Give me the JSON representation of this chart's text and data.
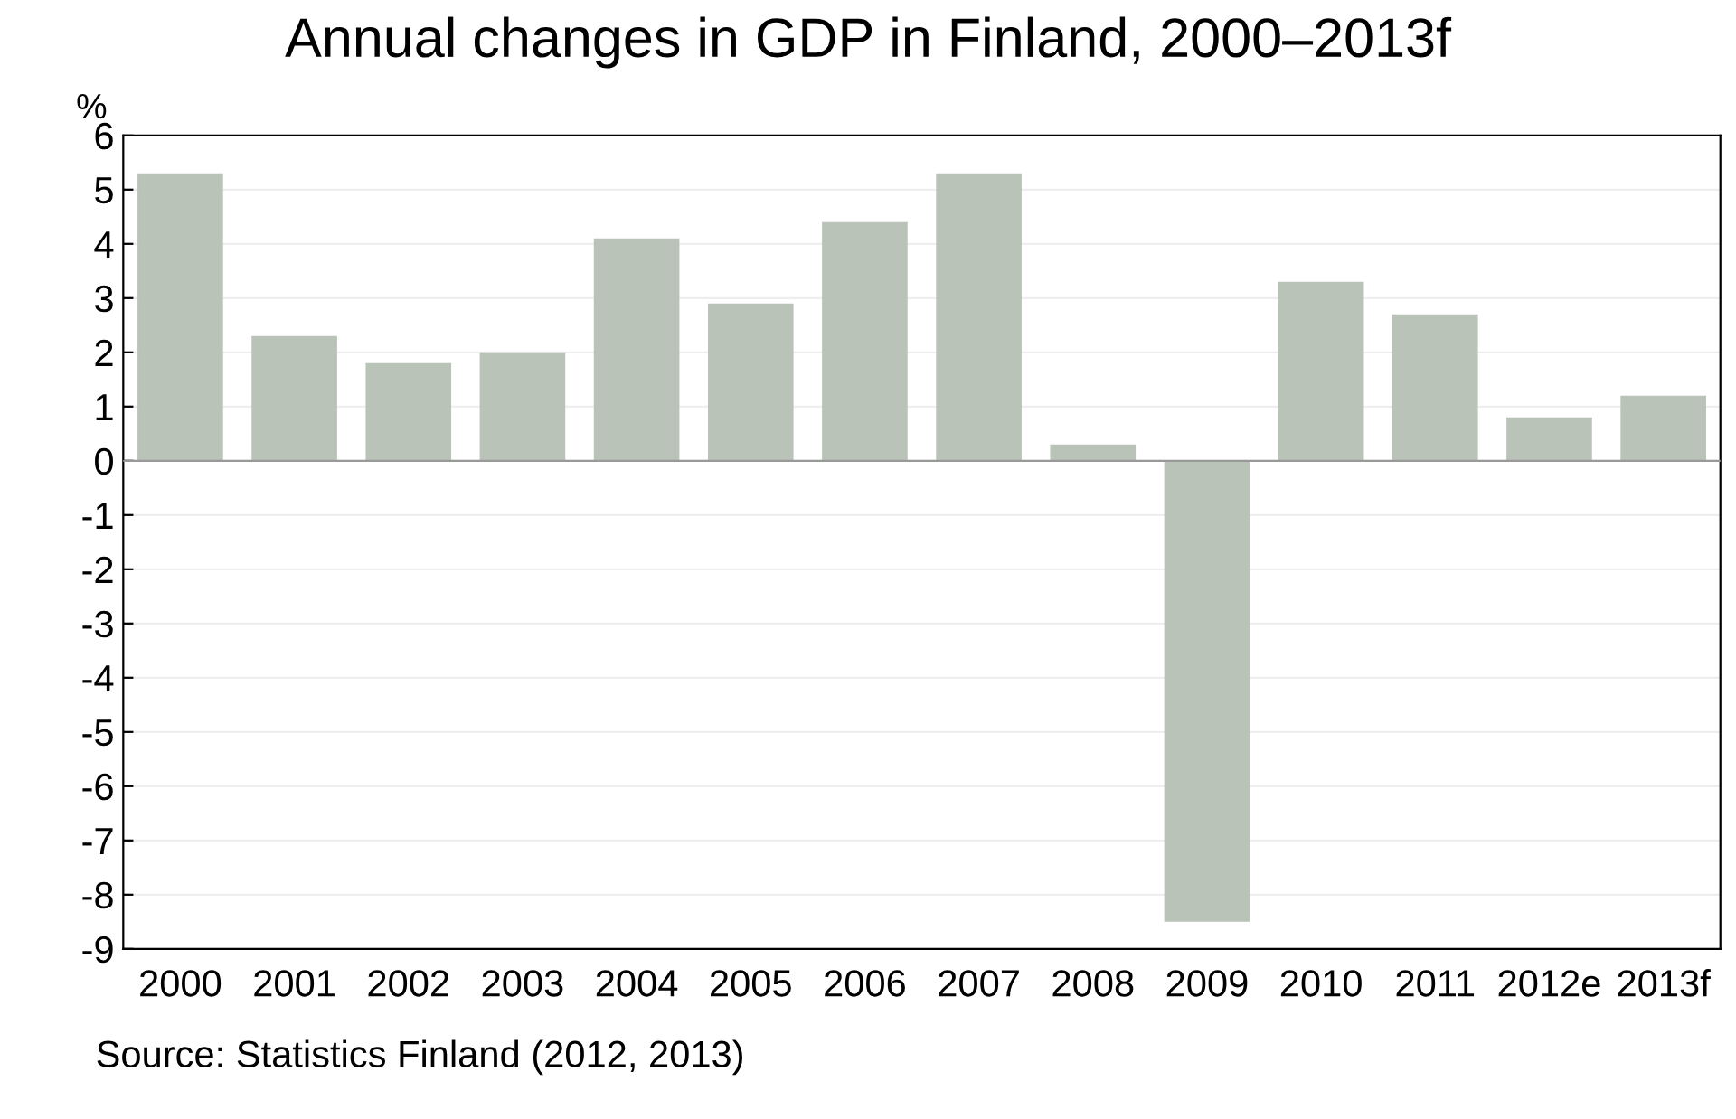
{
  "chart_data": {
    "type": "bar",
    "title": "Annual changes in GDP in Finland, 2000–2013f",
    "ylabel": "%",
    "categories": [
      "2000",
      "2001",
      "2002",
      "2003",
      "2004",
      "2005",
      "2006",
      "2007",
      "2008",
      "2009",
      "2010",
      "2011",
      "2012e",
      "2013f"
    ],
    "values": [
      5.3,
      2.3,
      1.8,
      2.0,
      4.1,
      2.9,
      4.4,
      5.3,
      0.3,
      -8.5,
      3.3,
      2.7,
      0.8,
      1.2
    ],
    "color": "#b9c3b8",
    "ylim": [
      -9,
      6
    ],
    "yticks": [
      -9,
      -8,
      -7,
      -6,
      -5,
      -4,
      -3,
      -2,
      -1,
      0,
      1,
      2,
      3,
      4,
      5,
      6
    ],
    "grid": "y",
    "annotations": [
      "Source: Statistics Finland (2012, 2013)"
    ]
  }
}
